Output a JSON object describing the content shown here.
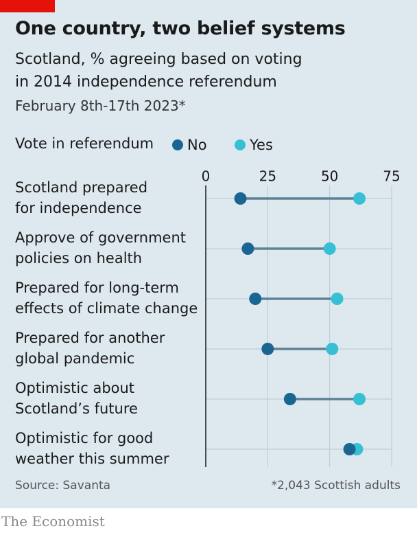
{
  "chart_data": {
    "type": "dumbbell",
    "title": "One country, two belief systems",
    "subtitle": "Scotland, % agreeing based on voting in 2014 independence referendum",
    "date_note": "February 8th-17th 2023*",
    "legend_title": "Vote in referendum",
    "categories": [
      "Scotland prepared\nfor independence",
      "Approve of government\npolicies on health",
      "Prepared for long-term\neffects of climate change",
      "Prepared for another\nglobal pandemic",
      "Optimistic about\nScotland’s future",
      "Optimistic for good\nweather this summer"
    ],
    "series": [
      {
        "name": "No",
        "color": "#1b6592",
        "values": [
          14,
          17,
          20,
          25,
          34,
          58
        ]
      },
      {
        "name": "Yes",
        "color": "#37c0d4",
        "values": [
          62,
          50,
          53,
          51,
          62,
          61
        ]
      }
    ],
    "xlim": [
      0,
      75
    ],
    "xticks": [
      0,
      25,
      50,
      75
    ],
    "grid": true,
    "source": "Source: Savanta",
    "footnote": "*2,043 Scottish adults",
    "brand": "The Economist"
  }
}
